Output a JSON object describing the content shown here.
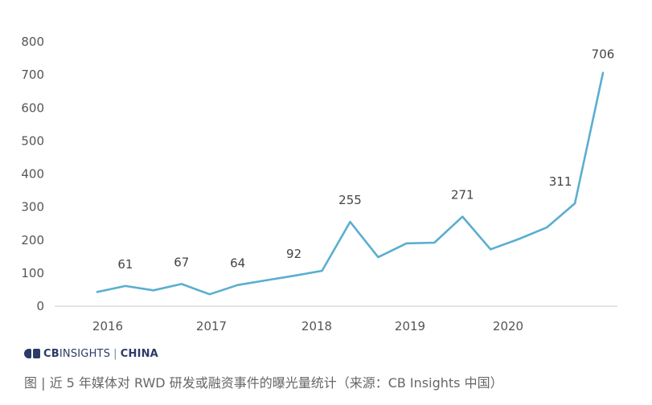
{
  "chart_data": {
    "type": "line",
    "title": "",
    "xlabel": "",
    "ylabel": "",
    "ylim": [
      0,
      800
    ],
    "yticks": [
      0,
      100,
      200,
      300,
      400,
      500,
      600,
      700,
      800
    ],
    "xtick_labels": [
      "2016",
      "2017",
      "2018",
      "2019",
      "2020"
    ],
    "grid": false,
    "line_color": "#5aaed0",
    "series": [
      {
        "values": [
          43,
          61,
          48,
          67,
          36,
          64,
          78,
          92,
          107,
          255,
          148,
          190,
          192,
          271,
          172,
          203,
          238,
          311,
          706
        ],
        "labels": [
          "",
          "61",
          "",
          "67",
          "",
          "64",
          "",
          "92",
          "",
          "255",
          "",
          "",
          "",
          "271",
          "",
          "",
          "",
          "311",
          "706"
        ]
      }
    ]
  },
  "brand": {
    "logo_name": "cb-logo-icon",
    "cb": "CB",
    "insights": "INSIGHTS",
    "separator": "|",
    "china": "CHINA"
  },
  "caption": "图 | 近 5 年媒体对 RWD 研发或融资事件的曝光量统计（来源：CB Insights 中国）"
}
